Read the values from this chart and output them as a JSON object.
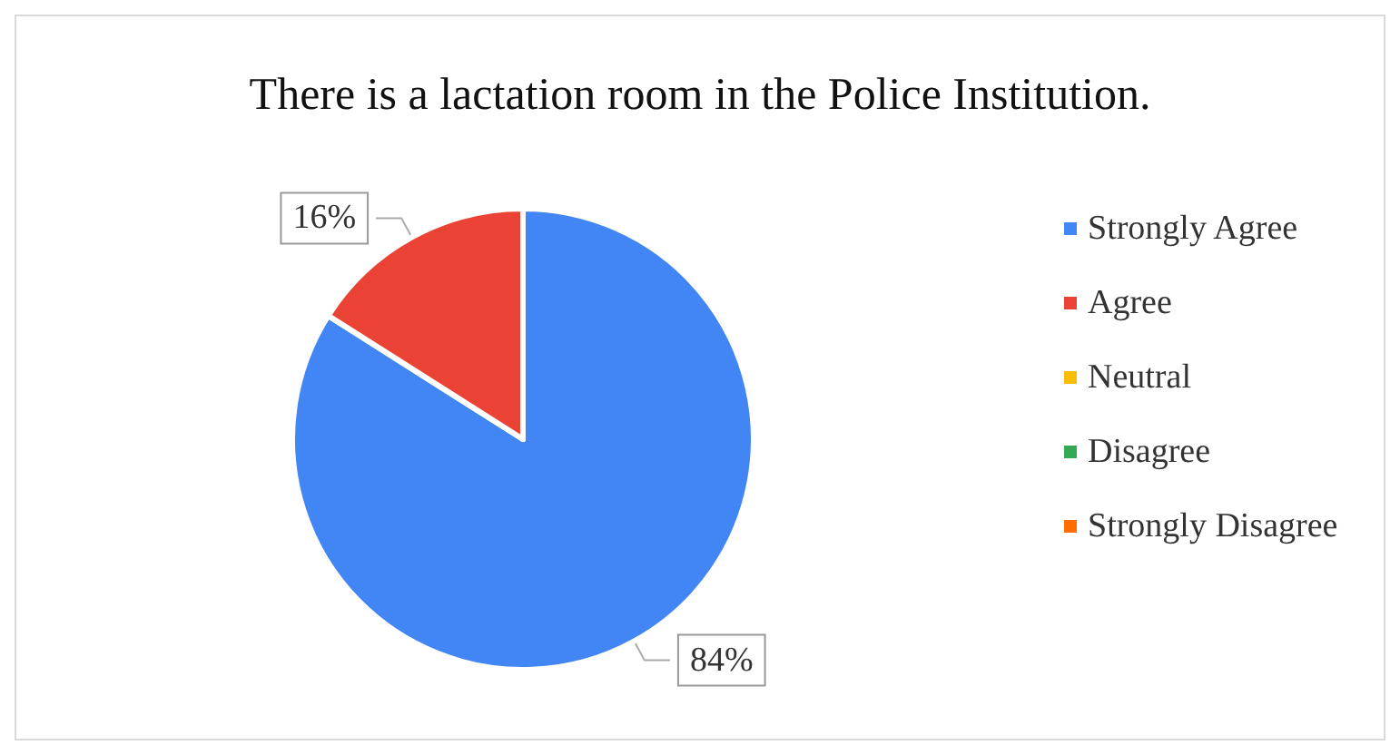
{
  "chart_data": {
    "type": "pie",
    "title": "There is a lactation room in the Police Institution.",
    "categories": [
      "Strongly Agree",
      "Agree",
      "Neutral",
      "Disagree",
      "Strongly Disagree"
    ],
    "values": [
      84,
      16,
      0,
      0,
      0
    ],
    "colors": [
      "#4285f4",
      "#ea4335",
      "#fbbc04",
      "#34a853",
      "#ff6d01"
    ],
    "value_labels": [
      "84%",
      "16%",
      null,
      null,
      null
    ],
    "legend": "right"
  }
}
